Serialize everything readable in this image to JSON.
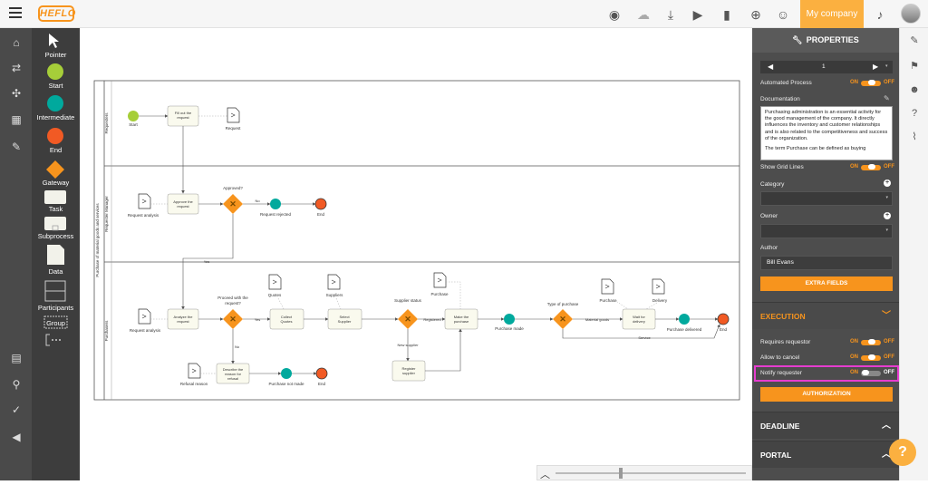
{
  "topbar": {
    "logo": "HEFLO",
    "company_label": "My company",
    "icons": [
      "eye-icon",
      "cloud-icon",
      "download-icon",
      "play-icon",
      "book-icon",
      "plus-circle-icon",
      "add-user-icon",
      "bell-icon"
    ]
  },
  "leftnav": {
    "icons": [
      "home-icon",
      "flow-icon",
      "network-icon",
      "grid-icon",
      "wrench-icon",
      "archive-icon",
      "search-icon",
      "check-icon",
      "megaphone-icon"
    ]
  },
  "palette": {
    "items": [
      "Pointer",
      "Start",
      "Intermediate",
      "End",
      "Gateway",
      "Task",
      "Subprocess",
      "Data",
      "Participants",
      "Group"
    ]
  },
  "diagram": {
    "pool_label": "Purchase of material goods and services",
    "lanes": [
      "Requesters",
      "Requester Manager",
      "Purchasers"
    ],
    "start_label": "Start",
    "fill_out_request": "Fill out the request",
    "request_doc": "Request",
    "request_analysis_1": "Request analysis",
    "approve_request": "Approve the request",
    "approved_q": "Approved?",
    "no_1": "No",
    "request_rejected": "Request rejected",
    "end_1": "End",
    "yes_1": "Yes",
    "request_analysis_2": "Request analysis",
    "analyze_request": "Analyze the request",
    "proceed_q": "Proceed with the request?",
    "yes_2": "Yes",
    "no_2": "No",
    "quotes_doc": "Quotes",
    "collect_quotes": "Collect Quotes",
    "suppliers_doc": "Suppliers",
    "select_supplier": "Select Supplier",
    "supplier_status": "Supplier status",
    "registered": "Registered",
    "new_supplier": "New supplier",
    "purchase_doc": "Purchase",
    "make_purchase": "Make the purchase",
    "register_supplier": "Register supplier",
    "purchase_made_1": "Purchase made",
    "type_of_purchase": "Type of purchase",
    "material_goods": "Material goods",
    "service": "Service",
    "purchase_doc_2": "Purchase",
    "delivery_doc": "Delivery",
    "wait_for_delivery": "Wait for delivery",
    "purchase_delivered": "Purchase delivered",
    "end_2": "End",
    "refusal_reason": "Refusal reason",
    "describe_refusal": "Describe the reason for refusal",
    "purchase_not_made": "Purchase not made",
    "end_3": "End"
  },
  "properties": {
    "header": "PROPERTIES",
    "page_value": "1",
    "automated_process": "Automated Process",
    "documentation": "Documentation",
    "doc_text_1": "Purchasing administration is an essential activity for the good management of the company. It directly influences the inventory and customer relationships and is also related to the competitiveness and success of the organization.",
    "doc_text_2": "The term Purchase can be defined as buying",
    "show_grid_lines": "Show Grid Lines",
    "category": "Category",
    "owner": "Owner",
    "author": "Author",
    "author_value": "Bill Evans",
    "extra_fields": "EXTRA FIELDS",
    "execution": "EXECUTION",
    "requires_requestor": "Requires requestor",
    "allow_to_cancel": "Allow to cancel",
    "notify_requester": "Notify requester",
    "authorization": "AUTHORIZATION",
    "deadline": "DEADLINE",
    "portal": "PORTAL",
    "on": "ON",
    "off": "OFF"
  },
  "rightnav": {
    "icons": [
      "wrench-icon",
      "flag-icon",
      "people-icon",
      "question-box-icon",
      "paperclip-icon"
    ]
  },
  "help": "?",
  "colors": {
    "accent": "#f7941d",
    "start": "#a6ce39",
    "intermediate": "#00a99d",
    "end": "#f15a24",
    "highlight": "#e63ccf"
  }
}
